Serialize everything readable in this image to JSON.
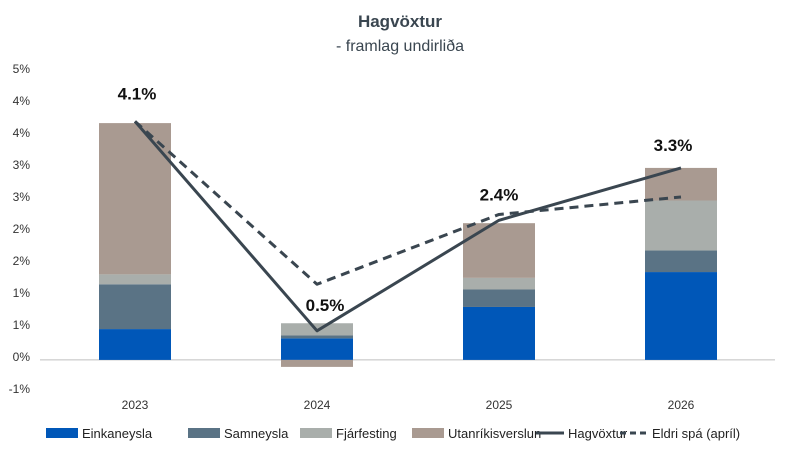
{
  "chart_data": {
    "type": "bar",
    "stacked": true,
    "title": "Hagvöxtur",
    "subtitle": "- framlag undirliða",
    "categories": [
      "2023",
      "2024",
      "2025",
      "2026"
    ],
    "y_tick_labels": [
      "-1%",
      "0%",
      "1%",
      "1%",
      "2%",
      "2%",
      "3%",
      "3%",
      "4%",
      "4%",
      "5%"
    ],
    "ylim": [
      -0.5,
      5.0
    ],
    "grid": false,
    "legend_position": "bottom",
    "series": [
      {
        "name": "Einkaneysla",
        "kind": "bar",
        "color": "#0057b8",
        "values": [
          0.53,
          0.37,
          0.91,
          1.51
        ]
      },
      {
        "name": "Samneysla",
        "kind": "bar",
        "color": "#5a7385",
        "values": [
          0.77,
          0.05,
          0.3,
          0.37
        ]
      },
      {
        "name": "Fjárfesting",
        "kind": "bar",
        "color": "#a9aeab",
        "values": [
          0.17,
          0.21,
          0.2,
          0.86
        ]
      },
      {
        "name": "Utanríkisverslun",
        "kind": "bar",
        "color": "#a99a91",
        "values": [
          2.6,
          -0.12,
          0.94,
          0.56
        ]
      },
      {
        "name": "Hagvöxtur",
        "kind": "line",
        "color": "#3a4650",
        "values": [
          4.1,
          0.5,
          2.4,
          3.3
        ]
      },
      {
        "name": "Eldri spá (apríl)",
        "kind": "dashed-line",
        "color": "#3a4650",
        "values": [
          4.1,
          1.3,
          2.5,
          2.8
        ]
      }
    ],
    "data_labels": [
      "4.1%",
      "0.5%",
      "2.4%",
      "3.3%"
    ]
  }
}
